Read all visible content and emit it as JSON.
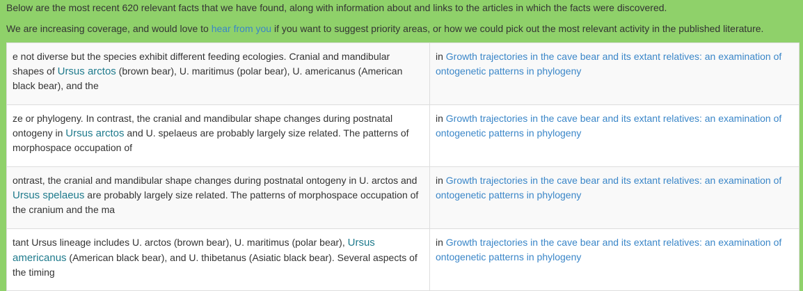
{
  "intro": {
    "line1": "Below are the most recent 620 relevant facts that we have found, along with information about and links to the articles in which the facts were discovered.",
    "line2_before": "We are increasing coverage, and would love to ",
    "line2_link": "hear from you",
    "line2_after": " if you want to suggest priority areas, or how we could pick out the most relevant activity in the published literature."
  },
  "facts": [
    {
      "before": "e not diverse but the species exhibit different feeding ecologies. Cranial and mandibular shapes of ",
      "term": "Ursus arctos",
      "after": " (brown bear), U. maritimus (polar bear), U. americanus (American black bear), and the",
      "in_label": "in ",
      "article": "Growth trajectories in the cave bear and its extant relatives: an examination of ontogenetic patterns in phylogeny"
    },
    {
      "before": "ze or phylogeny. In contrast, the cranial and mandibular shape changes during postnatal ontogeny in ",
      "term": "Ursus arctos",
      "after": " and U. spelaeus are probably largely size related. The patterns of morphospace occupation of",
      "in_label": "in ",
      "article": "Growth trajectories in the cave bear and its extant relatives: an examination of ontogenetic patterns in phylogeny"
    },
    {
      "before": "ontrast, the cranial and mandibular shape changes during postnatal ontogeny in U. arctos and ",
      "term": "Ursus spelaeus",
      "after": " are probably largely size related. The patterns of morphospace occupation of the cranium and the ma",
      "in_label": "in ",
      "article": "Growth trajectories in the cave bear and its extant relatives: an examination of ontogenetic patterns in phylogeny"
    },
    {
      "before": "tant Ursus lineage includes U. arctos (brown bear), U. maritimus (polar bear), ",
      "term": "Ursus americanus",
      "after": " (American black bear), and U. thibetanus (Asiatic black bear). Several aspects of the timing",
      "in_label": "in ",
      "article": "Growth trajectories in the cave bear and its extant relatives: an examination of ontogenetic patterns in phylogeny"
    }
  ]
}
